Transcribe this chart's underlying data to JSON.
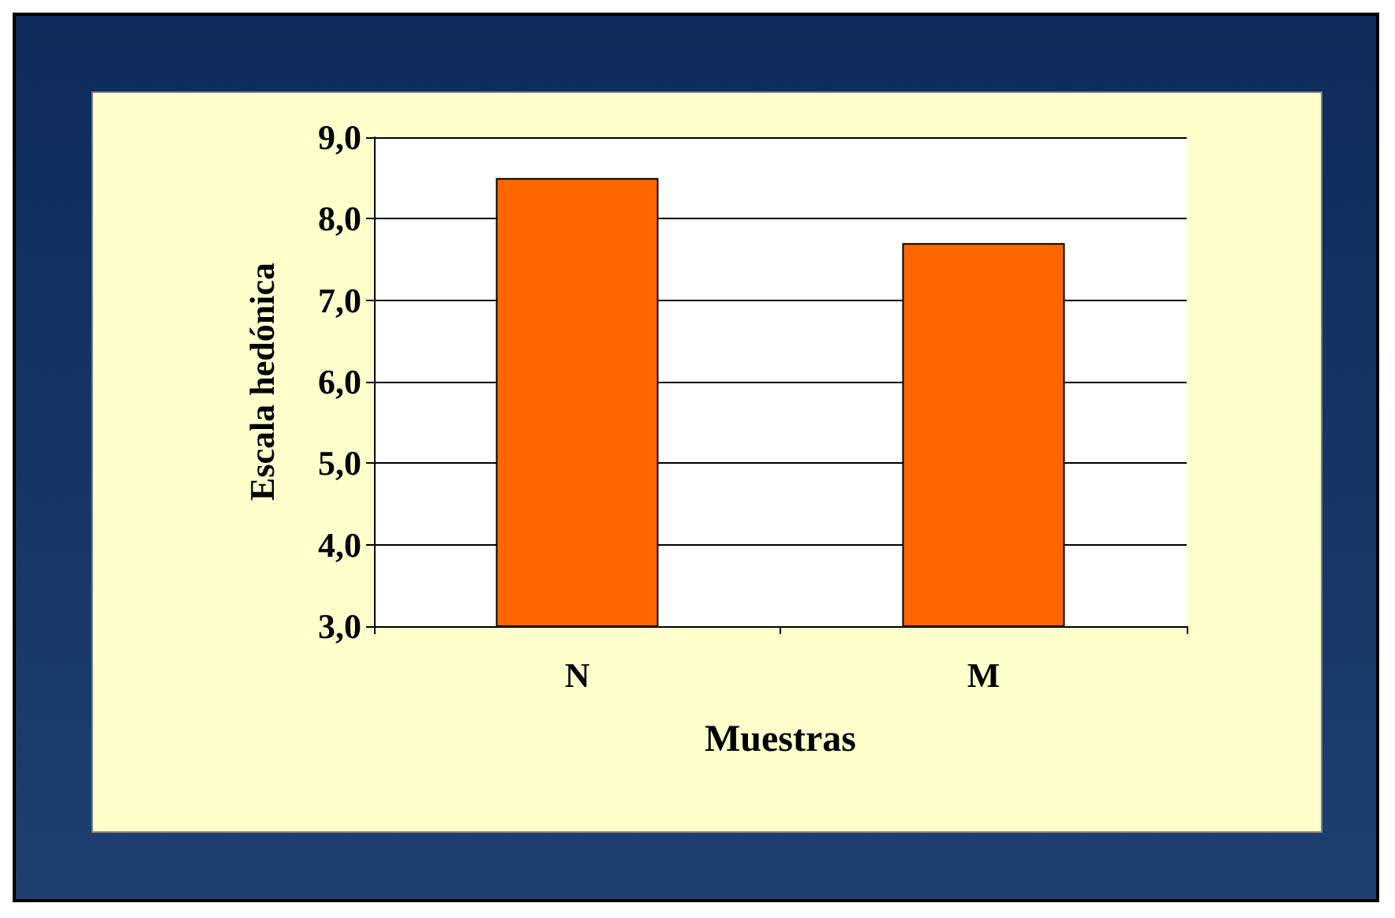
{
  "chart_data": {
    "type": "bar",
    "xlabel": "Muestras",
    "ylabel": "Escala hedónica",
    "categories": [
      "N",
      "M"
    ],
    "series": [
      {
        "color": "#ff6600",
        "values": [
          8.5,
          7.7
        ]
      }
    ],
    "ylim": [
      3,
      9
    ],
    "yticks": [
      {
        "value": 3,
        "label": "3,0"
      },
      {
        "value": 4,
        "label": "4,0"
      },
      {
        "value": 5,
        "label": "5,0"
      },
      {
        "value": 6,
        "label": "6,0"
      },
      {
        "value": 7,
        "label": "7,0"
      },
      {
        "value": 8,
        "label": "8,0"
      },
      {
        "value": 9,
        "label": "9,0"
      }
    ],
    "grid": "y"
  }
}
